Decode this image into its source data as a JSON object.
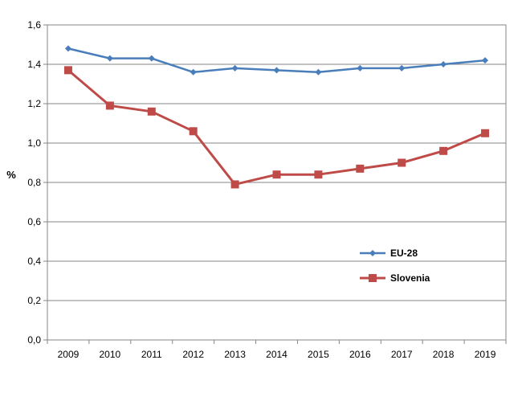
{
  "chart_data": {
    "type": "line",
    "title": "",
    "xlabel": "",
    "ylabel": "%",
    "ylim": [
      0,
      1.6
    ],
    "y_ticks": [
      "0,0",
      "0,2",
      "0,4",
      "0,6",
      "0,8",
      "1,0",
      "1,2",
      "1,4",
      "1,6"
    ],
    "y_tick_values": [
      0,
      0.2,
      0.4,
      0.6,
      0.8,
      1.0,
      1.2,
      1.4,
      1.6
    ],
    "categories": [
      "2009",
      "2010",
      "2011",
      "2012",
      "2013",
      "2014",
      "2015",
      "2016",
      "2017",
      "2018",
      "2019"
    ],
    "grid": true,
    "legend_position": "right, inside plot",
    "series": [
      {
        "name": "EU-28",
        "color": "#4a7ebb",
        "marker": "diamond",
        "values": [
          1.48,
          1.43,
          1.43,
          1.36,
          1.38,
          1.37,
          1.36,
          1.38,
          1.38,
          1.4,
          1.42
        ]
      },
      {
        "name": "Slovenia",
        "color": "#be4b48",
        "marker": "square",
        "values": [
          1.37,
          1.19,
          1.16,
          1.06,
          0.79,
          0.84,
          0.84,
          0.87,
          0.9,
          0.96,
          1.05
        ]
      }
    ]
  }
}
